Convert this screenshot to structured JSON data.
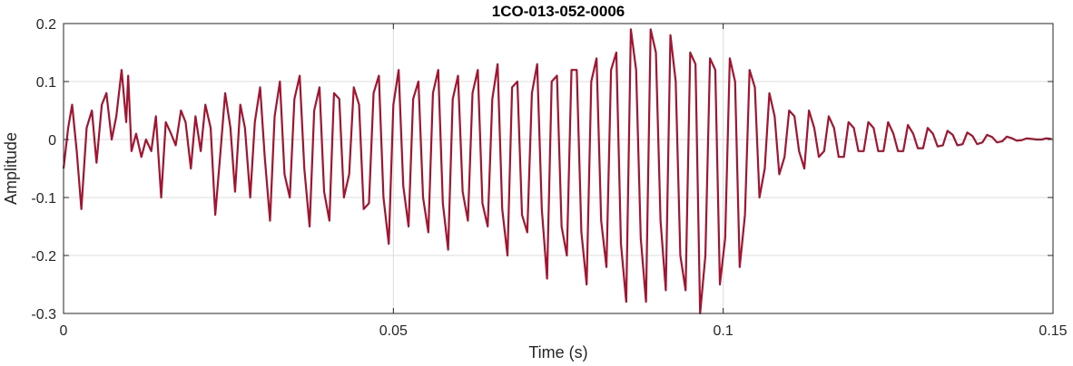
{
  "chart_data": {
    "type": "line",
    "title": "1CO-013-052-0006",
    "xlabel": "Time (s)",
    "ylabel": "Amplitude",
    "xlim": [
      0,
      0.15
    ],
    "ylim": [
      -0.3,
      0.2
    ],
    "xticks": [
      0,
      0.05,
      0.1,
      0.15
    ],
    "xtick_labels": [
      "0",
      "0.05",
      "0.1",
      "0.15"
    ],
    "yticks": [
      -0.3,
      -0.2,
      -0.1,
      0,
      0.1,
      0.2
    ],
    "ytick_labels": [
      "-0.3",
      "-0.2",
      "-0.1",
      "0",
      "0.1",
      "0.2"
    ],
    "grid": true,
    "line_color": "#A2142F",
    "series": [
      {
        "x": [
          0,
          0.0007,
          0.0013,
          0.002,
          0.0027,
          0.0035,
          0.0043,
          0.005,
          0.0058,
          0.0065,
          0.0073,
          0.008,
          0.0088,
          0.0095,
          0.0098,
          0.0103,
          0.011,
          0.0118,
          0.0125,
          0.0133,
          0.014,
          0.0148,
          0.0155,
          0.0163,
          0.017,
          0.0178,
          0.0185,
          0.0193,
          0.02,
          0.0208,
          0.0215,
          0.0223,
          0.023,
          0.0238,
          0.0245,
          0.0253,
          0.026,
          0.0268,
          0.0275,
          0.0283,
          0.029,
          0.0298,
          0.0305,
          0.0313,
          0.032,
          0.0328,
          0.0335,
          0.0343,
          0.035,
          0.0358,
          0.0365,
          0.0373,
          0.038,
          0.0388,
          0.0395,
          0.0403,
          0.041,
          0.0418,
          0.0425,
          0.0433,
          0.044,
          0.0448,
          0.0455,
          0.0463,
          0.047,
          0.0478,
          0.0485,
          0.0493,
          0.05,
          0.0508,
          0.0515,
          0.0523,
          0.053,
          0.0538,
          0.0545,
          0.0553,
          0.056,
          0.0568,
          0.0575,
          0.0583,
          0.059,
          0.0598,
          0.0605,
          0.0613,
          0.062,
          0.0628,
          0.0635,
          0.0643,
          0.065,
          0.0658,
          0.0665,
          0.0673,
          0.068,
          0.0688,
          0.0695,
          0.0703,
          0.071,
          0.0718,
          0.0725,
          0.0733,
          0.074,
          0.0748,
          0.0755,
          0.0763,
          0.077,
          0.0778,
          0.0785,
          0.0793,
          0.08,
          0.0808,
          0.0815,
          0.0823,
          0.083,
          0.0838,
          0.0845,
          0.0853,
          0.086,
          0.0868,
          0.0875,
          0.0883,
          0.089,
          0.0898,
          0.0905,
          0.0913,
          0.092,
          0.0928,
          0.0935,
          0.0943,
          0.095,
          0.0958,
          0.0965,
          0.0973,
          0.098,
          0.0988,
          0.0995,
          0.1003,
          0.101,
          0.1018,
          0.1025,
          0.1033,
          0.104,
          0.1048,
          0.1055,
          0.1063,
          0.107,
          0.1078,
          0.1085,
          0.1093,
          0.11,
          0.1108,
          0.1115,
          0.1123,
          0.113,
          0.1138,
          0.1145,
          0.1153,
          0.116,
          0.1168,
          0.1175,
          0.1183,
          0.119,
          0.1198,
          0.1205,
          0.1213,
          0.122,
          0.1228,
          0.1235,
          0.1243,
          0.125,
          0.1258,
          0.1265,
          0.1273,
          0.128,
          0.1288,
          0.1295,
          0.1303,
          0.131,
          0.1318,
          0.1325,
          0.1333,
          0.134,
          0.1348,
          0.1355,
          0.1363,
          0.137,
          0.1378,
          0.1385,
          0.1393,
          0.14,
          0.1408,
          0.1415,
          0.1423,
          0.143,
          0.1438,
          0.1445,
          0.1453,
          0.146,
          0.1468,
          0.1475,
          0.1483,
          0.149,
          0.1498
        ],
        "y": [
          -0.05,
          0.02,
          0.06,
          -0.02,
          -0.12,
          0.02,
          0.05,
          -0.04,
          0.06,
          0.08,
          0.0,
          0.04,
          0.12,
          0.03,
          0.11,
          -0.02,
          0.01,
          -0.03,
          0.0,
          -0.02,
          0.04,
          -0.1,
          0.03,
          0.01,
          -0.01,
          0.05,
          0.03,
          -0.05,
          0.04,
          -0.02,
          0.06,
          0.02,
          -0.13,
          -0.02,
          0.08,
          0.02,
          -0.09,
          0.06,
          0.02,
          -0.1,
          0.03,
          0.09,
          -0.03,
          -0.14,
          0.04,
          0.1,
          -0.06,
          -0.1,
          0.07,
          0.11,
          -0.05,
          -0.15,
          0.05,
          0.09,
          -0.09,
          -0.14,
          0.08,
          0.07,
          -0.1,
          -0.06,
          0.09,
          0.06,
          -0.12,
          -0.11,
          0.08,
          0.11,
          -0.1,
          -0.18,
          0.06,
          0.12,
          -0.08,
          -0.15,
          0.07,
          0.1,
          -0.1,
          -0.16,
          0.08,
          0.12,
          -0.11,
          -0.19,
          0.07,
          0.11,
          -0.09,
          -0.14,
          0.08,
          0.12,
          -0.11,
          -0.15,
          0.07,
          0.13,
          -0.12,
          -0.2,
          0.09,
          0.1,
          -0.13,
          -0.16,
          0.08,
          0.13,
          -0.12,
          -0.24,
          0.1,
          0.11,
          -0.15,
          -0.2,
          0.12,
          0.12,
          -0.16,
          -0.25,
          0.1,
          0.14,
          -0.14,
          -0.22,
          0.12,
          0.15,
          -0.18,
          -0.28,
          0.19,
          0.12,
          -0.17,
          -0.28,
          0.19,
          0.15,
          -0.14,
          -0.26,
          0.18,
          0.1,
          -0.2,
          -0.26,
          0.15,
          0.13,
          -0.3,
          -0.2,
          0.14,
          0.12,
          -0.25,
          -0.17,
          0.14,
          0.1,
          -0.22,
          -0.13,
          0.12,
          0.09,
          -0.1,
          -0.05,
          0.08,
          0.04,
          -0.06,
          -0.03,
          0.05,
          0.04,
          -0.02,
          -0.05,
          0.05,
          0.02,
          -0.03,
          -0.02,
          0.04,
          0.02,
          -0.03,
          -0.03,
          0.03,
          0.02,
          -0.02,
          -0.02,
          0.03,
          0.02,
          -0.02,
          -0.02,
          0.03,
          0.01,
          -0.02,
          -0.02,
          0.025,
          0.01,
          -0.015,
          -0.015,
          0.02,
          0.01,
          -0.012,
          -0.01,
          0.015,
          0.008,
          -0.01,
          -0.008,
          0.012,
          0.006,
          -0.008,
          -0.005,
          0.008,
          0.004,
          -0.005,
          -0.003,
          0.005,
          0.002,
          -0.002,
          -0.001,
          0.002,
          0.001,
          0.0,
          0.0,
          0.002,
          0.001
        ]
      }
    ]
  }
}
